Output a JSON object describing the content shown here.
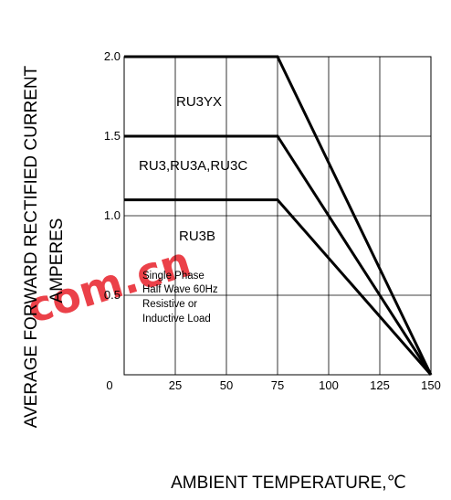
{
  "chart_data": {
    "type": "line",
    "xlabel": "AMBIENT TEMPERATURE,℃",
    "ylabel_line1": "AVERAGE FORWARD RECTIFIED CURRENT",
    "ylabel_line2": "AMPERES",
    "xlim": [
      0,
      150
    ],
    "ylim": [
      0,
      2.0
    ],
    "xticks": [
      0,
      25,
      50,
      75,
      100,
      125,
      150
    ],
    "yticks": [
      0.5,
      1.0,
      1.5,
      2.0
    ],
    "ytick_labels": [
      "0.5",
      "1.0",
      "1.5",
      "2.0"
    ],
    "grid": true,
    "series": [
      {
        "name": "RU3YX",
        "x": [
          0,
          75,
          150
        ],
        "y": [
          2.0,
          2.0,
          0
        ]
      },
      {
        "name": "RU3,RU3A,RU3C",
        "x": [
          0,
          75,
          150
        ],
        "y": [
          1.5,
          1.5,
          0
        ]
      },
      {
        "name": "RU3B",
        "x": [
          0,
          75,
          150
        ],
        "y": [
          1.1,
          1.1,
          0
        ]
      }
    ],
    "note_lines": [
      "Single Phase",
      "Half Wave 60Hz",
      "Resistive or",
      "Inductive Load"
    ]
  },
  "watermark": {
    "text": "com.cn",
    "color": "#e8202a"
  }
}
